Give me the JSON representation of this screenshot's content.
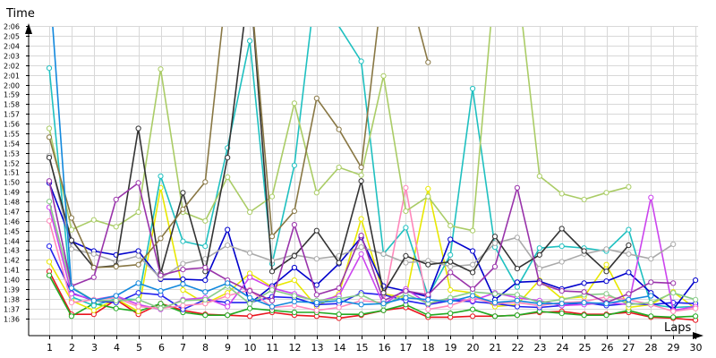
{
  "chart_data": {
    "type": "line",
    "title": "",
    "xlabel": "Laps",
    "ylabel": "Time",
    "x": [
      1,
      2,
      3,
      4,
      5,
      6,
      7,
      8,
      9,
      10,
      11,
      12,
      13,
      14,
      15,
      16,
      17,
      18,
      19,
      20,
      21,
      22,
      23,
      24,
      25,
      26,
      27,
      28,
      29,
      30
    ],
    "x_ticks": [
      "1",
      "2",
      "3",
      "4",
      "5",
      "6",
      "7",
      "8",
      "9",
      "10",
      "11",
      "12",
      "13",
      "14",
      "15",
      "16",
      "17",
      "18",
      "19",
      "20",
      "21",
      "22",
      "23",
      "24",
      "25",
      "26",
      "27",
      "28",
      "29",
      "30"
    ],
    "ylim": [
      95,
      127
    ],
    "y_ticks": [
      {
        "value": 96,
        "label": "1:36"
      },
      {
        "value": 97,
        "label": "1:37"
      },
      {
        "value": 98,
        "label": "1:38"
      },
      {
        "value": 99,
        "label": "1:39"
      },
      {
        "value": 100,
        "label": "1:40"
      },
      {
        "value": 101,
        "label": "1:41"
      },
      {
        "value": 102,
        "label": "1:42"
      },
      {
        "value": 103,
        "label": "1:43"
      },
      {
        "value": 104,
        "label": "1:44"
      },
      {
        "value": 105,
        "label": "1:45"
      },
      {
        "value": 106,
        "label": "1:46"
      },
      {
        "value": 107,
        "label": "1:47"
      },
      {
        "value": 108,
        "label": "1:48"
      },
      {
        "value": 109,
        "label": "1:49"
      },
      {
        "value": 110,
        "label": "1:50"
      },
      {
        "value": 111,
        "label": "1:51"
      },
      {
        "value": 112,
        "label": "1:52"
      },
      {
        "value": 113,
        "label": "1:53"
      },
      {
        "value": 114,
        "label": "1:54"
      },
      {
        "value": 115,
        "label": "1:55"
      },
      {
        "value": 116,
        "label": "1:56"
      },
      {
        "value": 117,
        "label": "1:57"
      },
      {
        "value": 118,
        "label": "1:58"
      },
      {
        "value": 119,
        "label": "1:59"
      },
      {
        "value": 120,
        "label": "2:00"
      },
      {
        "value": 121,
        "label": "2:01"
      },
      {
        "value": 122,
        "label": "2:02"
      },
      {
        "value": 123,
        "label": "2:03"
      },
      {
        "value": 124,
        "label": "2:04"
      },
      {
        "value": 125,
        "label": "2:05"
      },
      {
        "value": 126,
        "label": "2:06"
      }
    ],
    "grid": true,
    "legend": "none",
    "series": [
      {
        "color": "#e8141e",
        "values": [
          100.8,
          96.4,
          96.4,
          97.9,
          96.4,
          97.5,
          96.8,
          96.4,
          96.3,
          96.2,
          96.6,
          96.3,
          96.2,
          96,
          96.3,
          96.8,
          97.1,
          96.1,
          96.1,
          96.2,
          96.2,
          96.3,
          96.6,
          96.7,
          96.4,
          96.4,
          96.6,
          96.1,
          96,
          95.8
        ]
      },
      {
        "color": "#22aa22",
        "values": [
          100.4,
          96.2,
          97.5,
          97,
          96.7,
          97.5,
          96.6,
          96.3,
          96.3,
          97,
          96.8,
          96.6,
          96.6,
          96.4,
          96.4,
          96.8,
          97.4,
          96.3,
          96.5,
          96.9,
          96.2,
          96.3,
          96.7,
          96.5,
          96.3,
          96.3,
          96.8,
          96.2,
          96.1,
          96.2
        ]
      },
      {
        "color": "#e8e800",
        "values": [
          101.8,
          97.8,
          96.8,
          98,
          96.7,
          109.4,
          98.9,
          97.5,
          98.6,
          100.6,
          99.2,
          99.9,
          97.2,
          98.5,
          106.2,
          98.5,
          98.1,
          109.3,
          98.9,
          98.6,
          97.2,
          97.4,
          99.9,
          98,
          98.2,
          101.5,
          97.1,
          97.4,
          98.7,
          97
        ]
      },
      {
        "color": "#1fc0c0",
        "values": [
          121.7,
          98.2,
          97.3,
          98,
          97.9,
          110.6,
          103.9,
          103.4,
          113.5,
          124.5,
          101.6,
          111.7,
          131,
          126,
          122.4,
          102.6,
          105.3,
          98.3,
          102.5,
          119.6,
          103.3,
          99.2,
          103.2,
          103.4,
          103.2,
          102.9,
          105.1,
          97.4,
          97.1,
          97.2
        ]
      },
      {
        "color": "#2222ee",
        "values": [
          103.4,
          98.6,
          97.8,
          97.6,
          98.6,
          98.4,
          96.9,
          97.9,
          97.6,
          97.6,
          98.2,
          98.1,
          97.4,
          97.5,
          98.6,
          98.4,
          97.8,
          97.4,
          97.8,
          97.7,
          97.5,
          97.2,
          97.1,
          97.3,
          97.6,
          97.3,
          97.5,
          97.4,
          97.6,
          97.5
        ]
      },
      {
        "color": "#0000cc",
        "values": [
          109.9,
          103.9,
          102.9,
          102.5,
          102.9,
          100,
          100,
          99.9,
          105.1,
          97.5,
          99.3,
          101.2,
          99.4,
          101.6,
          104.3,
          99.3,
          98.8,
          98.2,
          104.1,
          102.9,
          97.9,
          99.7,
          99.8,
          99,
          99.6,
          99.8,
          100.7,
          98.6,
          96.9,
          99.9
        ]
      },
      {
        "color": "#cc44ee",
        "values": [
          107.4,
          98.5,
          97.9,
          98.3,
          97.4,
          96.9,
          97.9,
          98.1,
          97.2,
          100.2,
          99.1,
          98.5,
          97.7,
          98.3,
          102.6,
          97.4,
          99,
          97.5,
          98,
          97.8,
          98.6,
          98.1,
          97.8,
          97.3,
          97.4,
          97.6,
          97.4,
          108.4,
          96.8,
          97.2
        ]
      },
      {
        "color": "#ff88bb",
        "values": [
          106,
          97.6,
          97.9,
          98.1,
          97.2,
          97,
          97.3,
          97.5,
          98.3,
          98.9,
          97.1,
          97.3,
          96.8,
          97.1,
          97.8,
          97.6,
          109.4,
          96.9,
          97.3,
          98.1,
          97.5,
          97.6,
          97.3,
          97.6,
          97.7,
          98.2,
          97.9,
          97.4,
          96.7,
          97
        ]
      },
      {
        "color": "#88cc88",
        "values": [
          108,
          99.2,
          97.8,
          97.8,
          97.9,
          97,
          97.8,
          97.9,
          99.3,
          97.5,
          98.9,
          98.3,
          97.8,
          98,
          98.4,
          97.3,
          98.5,
          97.5,
          98.1,
          98.7,
          98.5,
          98.4,
          97.6,
          97.9,
          98.4,
          98.5,
          97.4,
          97.6,
          98.6,
          97.9
        ]
      },
      {
        "color": "#aaaaaa",
        "values": [
          112.7,
          103.1,
          102.6,
          101.8,
          102.4,
          100.1,
          101.6,
          102.1,
          103.5,
          102.7,
          101.9,
          102.5,
          102.1,
          102.4,
          103.3,
          102.6,
          101.7,
          101.9,
          101.3,
          101.5,
          103.7,
          104.3,
          101.1,
          101.8,
          102.6,
          103.1,
          102.6,
          102.1,
          103.6,
          null
        ]
      },
      {
        "color": "#aacc66",
        "values": [
          115.5,
          105.1,
          106.1,
          105.4,
          106.9,
          121.6,
          106.9,
          106,
          110.5,
          106.9,
          108.5,
          118.1,
          108.9,
          111.5,
          110.7,
          120.9,
          107,
          108.5,
          105.5,
          105,
          131,
          131,
          110.6,
          108.8,
          108.2,
          108.9,
          109.5,
          null,
          null,
          null
        ]
      },
      {
        "color": "#333333",
        "values": [
          112.5,
          104,
          101.2,
          101.4,
          115.5,
          100.6,
          108.9,
          100.8,
          112.5,
          131,
          100.8,
          102.4,
          105,
          101.7,
          110.1,
          98.6,
          102.4,
          101.5,
          101.8,
          100.7,
          104.4,
          101.1,
          102.5,
          105.2,
          102.9,
          100.8,
          103.5,
          null,
          null,
          null
        ]
      },
      {
        "color": "#887744",
        "values": [
          114.6,
          106.3,
          101.2,
          101.3,
          101.5,
          104.2,
          107.2,
          110,
          131,
          131,
          104.4,
          107,
          118.6,
          115.4,
          111.5,
          131,
          131,
          122.3,
          null,
          null,
          null,
          null,
          null,
          null,
          null,
          null,
          null,
          null,
          null,
          null
        ]
      },
      {
        "color": "#9933aa",
        "values": [
          110.1,
          99.3,
          100.2,
          108.2,
          109.9,
          100.4,
          101,
          101.2,
          99.9,
          98.8,
          97.8,
          105.6,
          98.4,
          99.1,
          104.5,
          97.8,
          98.8,
          98.4,
          100.7,
          99,
          101.3,
          109.4,
          99.6,
          98.8,
          98.7,
          97.6,
          98.5,
          99.7,
          99.6,
          null
        ]
      },
      {
        "color": "#1188dd",
        "values": [
          131,
          99.1,
          97.8,
          98.3,
          99.6,
          98.8,
          99.5,
          98.7,
          99.6,
          98.1,
          97.2,
          97.7,
          97.6,
          97.8,
          97.4,
          97.5,
          98.1,
          97.9,
          97.7,
          98.3,
          97.6,
          97.8,
          97.5,
          97.5,
          97.6,
          97.5,
          97.9,
          98.3,
          null,
          null
        ]
      }
    ]
  }
}
